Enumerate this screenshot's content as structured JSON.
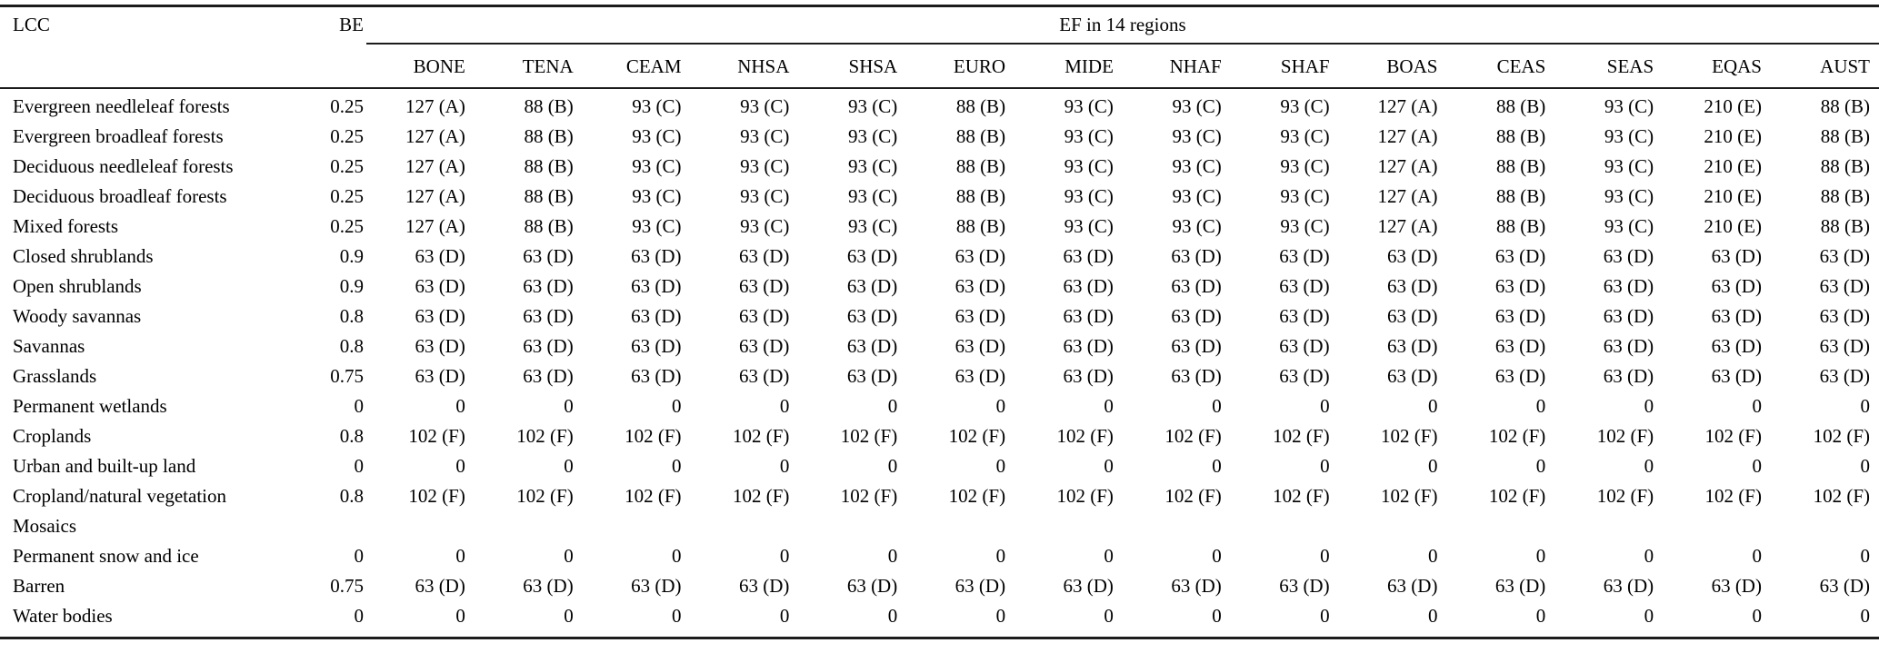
{
  "table": {
    "lcc_header": "LCC",
    "be_header": "BE",
    "ef_span_header": "EF in 14 regions",
    "regions": [
      "BONE",
      "TENA",
      "CEAM",
      "NHSA",
      "SHSA",
      "EURO",
      "MIDE",
      "NHAF",
      "SHAF",
      "BOAS",
      "CEAS",
      "SEAS",
      "EQAS",
      "AUST"
    ],
    "rows": [
      {
        "lcc": "Evergreen needleleaf forests",
        "be": "0.25",
        "ef": [
          "127 (A)",
          "88 (B)",
          "93 (C)",
          "93 (C)",
          "93 (C)",
          "88 (B)",
          "93 (C)",
          "93 (C)",
          "93 (C)",
          "127 (A)",
          "88 (B)",
          "93 (C)",
          "210 (E)",
          "88 (B)"
        ]
      },
      {
        "lcc": "Evergreen broadleaf forests",
        "be": "0.25",
        "ef": [
          "127 (A)",
          "88 (B)",
          "93 (C)",
          "93 (C)",
          "93 (C)",
          "88 (B)",
          "93 (C)",
          "93 (C)",
          "93 (C)",
          "127 (A)",
          "88 (B)",
          "93 (C)",
          "210 (E)",
          "88 (B)"
        ]
      },
      {
        "lcc": "Deciduous needleleaf forests",
        "be": "0.25",
        "ef": [
          "127 (A)",
          "88 (B)",
          "93 (C)",
          "93 (C)",
          "93 (C)",
          "88 (B)",
          "93 (C)",
          "93 (C)",
          "93 (C)",
          "127 (A)",
          "88 (B)",
          "93 (C)",
          "210 (E)",
          "88 (B)"
        ]
      },
      {
        "lcc": "Deciduous broadleaf forests",
        "be": "0.25",
        "ef": [
          "127 (A)",
          "88 (B)",
          "93 (C)",
          "93 (C)",
          "93 (C)",
          "88 (B)",
          "93 (C)",
          "93 (C)",
          "93 (C)",
          "127 (A)",
          "88 (B)",
          "93 (C)",
          "210 (E)",
          "88 (B)"
        ]
      },
      {
        "lcc": "Mixed forests",
        "be": "0.25",
        "ef": [
          "127 (A)",
          "88 (B)",
          "93 (C)",
          "93 (C)",
          "93 (C)",
          "88 (B)",
          "93 (C)",
          "93 (C)",
          "93 (C)",
          "127 (A)",
          "88 (B)",
          "93 (C)",
          "210 (E)",
          "88 (B)"
        ]
      },
      {
        "lcc": "Closed shrublands",
        "be": "0.9",
        "ef": [
          "63 (D)",
          "63 (D)",
          "63 (D)",
          "63 (D)",
          "63 (D)",
          "63 (D)",
          "63 (D)",
          "63 (D)",
          "63 (D)",
          "63 (D)",
          "63 (D)",
          "63 (D)",
          "63 (D)",
          "63 (D)"
        ]
      },
      {
        "lcc": "Open shrublands",
        "be": "0.9",
        "ef": [
          "63 (D)",
          "63 (D)",
          "63 (D)",
          "63 (D)",
          "63 (D)",
          "63 (D)",
          "63 (D)",
          "63 (D)",
          "63 (D)",
          "63 (D)",
          "63 (D)",
          "63 (D)",
          "63 (D)",
          "63 (D)"
        ]
      },
      {
        "lcc": "Woody savannas",
        "be": "0.8",
        "ef": [
          "63 (D)",
          "63 (D)",
          "63 (D)",
          "63 (D)",
          "63 (D)",
          "63 (D)",
          "63 (D)",
          "63 (D)",
          "63 (D)",
          "63 (D)",
          "63 (D)",
          "63 (D)",
          "63 (D)",
          "63 (D)"
        ]
      },
      {
        "lcc": "Savannas",
        "be": "0.8",
        "ef": [
          "63 (D)",
          "63 (D)",
          "63 (D)",
          "63 (D)",
          "63 (D)",
          "63 (D)",
          "63 (D)",
          "63 (D)",
          "63 (D)",
          "63 (D)",
          "63 (D)",
          "63 (D)",
          "63 (D)",
          "63 (D)"
        ]
      },
      {
        "lcc": "Grasslands",
        "be": "0.75",
        "ef": [
          "63 (D)",
          "63 (D)",
          "63 (D)",
          "63 (D)",
          "63 (D)",
          "63 (D)",
          "63 (D)",
          "63 (D)",
          "63 (D)",
          "63 (D)",
          "63 (D)",
          "63 (D)",
          "63 (D)",
          "63 (D)"
        ]
      },
      {
        "lcc": "Permanent wetlands",
        "be": "0",
        "ef": [
          "0",
          "0",
          "0",
          "0",
          "0",
          "0",
          "0",
          "0",
          "0",
          "0",
          "0",
          "0",
          "0",
          "0"
        ]
      },
      {
        "lcc": "Croplands",
        "be": "0.8",
        "ef": [
          "102 (F)",
          "102 (F)",
          "102 (F)",
          "102 (F)",
          "102 (F)",
          "102 (F)",
          "102 (F)",
          "102 (F)",
          "102 (F)",
          "102 (F)",
          "102 (F)",
          "102 (F)",
          "102 (F)",
          "102 (F)"
        ]
      },
      {
        "lcc": "Urban and built-up land",
        "be": "0",
        "ef": [
          "0",
          "0",
          "0",
          "0",
          "0",
          "0",
          "0",
          "0",
          "0",
          "0",
          "0",
          "0",
          "0",
          "0"
        ]
      },
      {
        "lcc": "Cropland/natural vegetation Mosaics",
        "be": "0.8",
        "ef": [
          "102 (F)",
          "102 (F)",
          "102 (F)",
          "102 (F)",
          "102 (F)",
          "102 (F)",
          "102 (F)",
          "102 (F)",
          "102 (F)",
          "102 (F)",
          "102 (F)",
          "102 (F)",
          "102 (F)",
          "102 (F)"
        ]
      },
      {
        "lcc": "Permanent snow and ice",
        "be": "0",
        "ef": [
          "0",
          "0",
          "0",
          "0",
          "0",
          "0",
          "0",
          "0",
          "0",
          "0",
          "0",
          "0",
          "0",
          "0"
        ]
      },
      {
        "lcc": "Barren",
        "be": "0.75",
        "ef": [
          "63 (D)",
          "63 (D)",
          "63 (D)",
          "63 (D)",
          "63 (D)",
          "63 (D)",
          "63 (D)",
          "63 (D)",
          "63 (D)",
          "63 (D)",
          "63 (D)",
          "63 (D)",
          "63 (D)",
          "63 (D)"
        ]
      },
      {
        "lcc": "Water bodies",
        "be": "0",
        "ef": [
          "0",
          "0",
          "0",
          "0",
          "0",
          "0",
          "0",
          "0",
          "0",
          "0",
          "0",
          "0",
          "0",
          "0"
        ]
      }
    ]
  },
  "colors": {
    "text": "#000000",
    "rule": "#1c1c1c",
    "background": "#ffffff"
  }
}
